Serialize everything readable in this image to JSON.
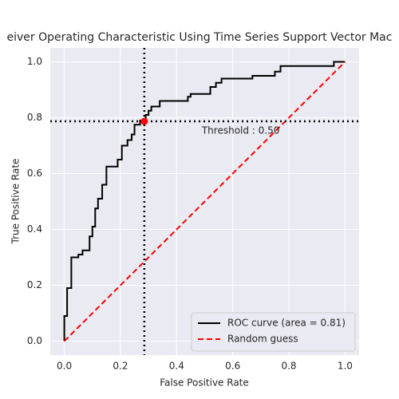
{
  "chart_data": {
    "type": "line",
    "title": "eiver Operating Characteristic Using Time Series Support Vector Mac",
    "x_label": "False Positive Rate",
    "y_label": "True Positive Rate",
    "xlim": [
      -0.05,
      1.05
    ],
    "ylim": [
      -0.05,
      1.05
    ],
    "xticks": [
      {
        "value": 0,
        "label": "0.0"
      },
      0.2,
      0.4,
      0.6,
      0.8,
      {
        "value": 1,
        "label": "1.0"
      }
    ],
    "yticks": [
      {
        "value": 0,
        "label": "0.0"
      },
      0.2,
      0.4,
      0.6,
      0.8,
      {
        "value": 1,
        "label": "1.0"
      }
    ],
    "grid": true,
    "legend": "lower right",
    "series": [
      {
        "name": "ROC curve (area = 0.81)",
        "color": "#000000",
        "dash": "solid",
        "x": [
          0,
          0,
          0.01,
          0.01,
          0.025,
          0.025,
          0.05,
          0.05,
          0.065,
          0.065,
          0.09,
          0.09,
          0.1,
          0.1,
          0.11,
          0.11,
          0.12,
          0.12,
          0.135,
          0.135,
          0.15,
          0.15,
          0.19,
          0.19,
          0.205,
          0.205,
          0.225,
          0.225,
          0.24,
          0.24,
          0.25,
          0.25,
          0.27,
          0.27,
          0.29,
          0.29,
          0.3,
          0.3,
          0.31,
          0.31,
          0.34,
          0.34,
          0.44,
          0.44,
          0.45,
          0.45,
          0.52,
          0.52,
          0.54,
          0.54,
          0.56,
          0.56,
          0.67,
          0.67,
          0.75,
          0.75,
          0.77,
          0.77,
          0.96,
          0.96,
          1.0
        ],
        "values": [
          0,
          0.09,
          0.09,
          0.19,
          0.19,
          0.3,
          0.3,
          0.31,
          0.31,
          0.325,
          0.325,
          0.375,
          0.375,
          0.41,
          0.41,
          0.475,
          0.475,
          0.51,
          0.51,
          0.56,
          0.56,
          0.625,
          0.625,
          0.65,
          0.65,
          0.7,
          0.7,
          0.72,
          0.72,
          0.74,
          0.74,
          0.775,
          0.775,
          0.79,
          0.79,
          0.81,
          0.81,
          0.825,
          0.825,
          0.84,
          0.84,
          0.86,
          0.86,
          0.875,
          0.875,
          0.885,
          0.885,
          0.91,
          0.91,
          0.925,
          0.925,
          0.94,
          0.94,
          0.95,
          0.95,
          0.965,
          0.965,
          0.985,
          0.985,
          1.0,
          1.0
        ]
      },
      {
        "name": "Random guess",
        "color": "#ff0000",
        "dash": "dashed",
        "x": [
          0,
          1
        ],
        "values": [
          0,
          1
        ]
      }
    ],
    "threshold_point": {
      "x": 0.285,
      "y": 0.787,
      "color": "#ff0000",
      "text": "Threshold : 0.50"
    }
  }
}
